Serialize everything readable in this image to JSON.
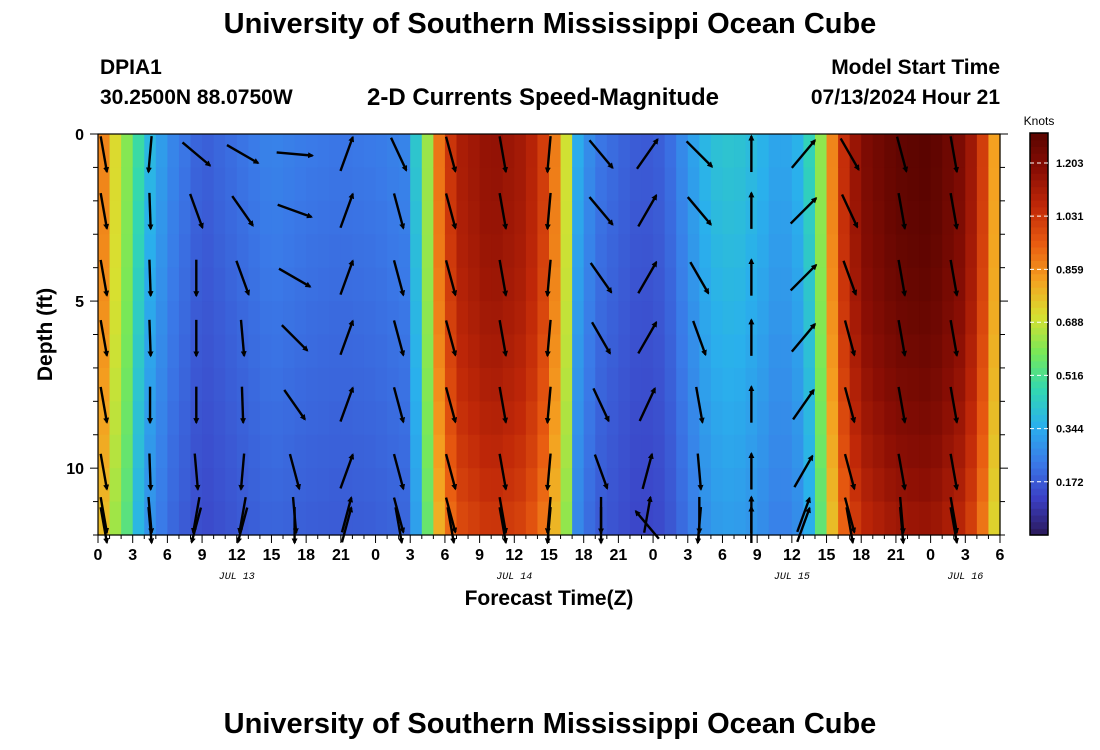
{
  "header": {
    "title": "University of Southern Mississippi Ocean Cube",
    "station": "DPIA1",
    "coords": "30.2500N  88.0750W",
    "subtitle": "2-D Currents Speed-Magnitude",
    "model_start_label": "Model Start Time",
    "model_start_value": "07/13/2024 Hour 21",
    "footer_title": "University of Southern Mississippi Ocean Cube"
  },
  "chart_data": {
    "type": "heatmap",
    "title": "2-D Currents Speed-Magnitude",
    "xlabel": "Forecast Time(Z)",
    "ylabel": "Depth (ft)",
    "ylim": [
      0,
      12
    ],
    "y_inverted": true,
    "y_ticks": [
      "0",
      "5",
      "10"
    ],
    "x_range_hours": [
      0,
      78
    ],
    "x_tick_labels": [
      "0",
      "3",
      "6",
      "9",
      "12",
      "15",
      "18",
      "21",
      "0",
      "3",
      "6",
      "9",
      "12",
      "15",
      "18",
      "21",
      "0",
      "3",
      "6",
      "9",
      "12",
      "15",
      "18",
      "21",
      "0",
      "3",
      "6"
    ],
    "date_labels": [
      {
        "hour": 12,
        "text": "JUL 13"
      },
      {
        "hour": 36,
        "text": "JUL 14"
      },
      {
        "hour": 60,
        "text": "JUL 15"
      },
      {
        "hour": 75,
        "text": "JUL 16"
      }
    ],
    "colorbar": {
      "label": "Knots",
      "min": 0.0,
      "max": 1.3,
      "ticks": [
        "0.172",
        "0.344",
        "0.516",
        "0.688",
        "0.859",
        "1.031",
        "1.203"
      ],
      "colors": [
        "#2a1858",
        "#3b3fc4",
        "#3a7ae8",
        "#2ab0ec",
        "#32d8b0",
        "#78e858",
        "#d8e030",
        "#f5a020",
        "#e85a10",
        "#c02808",
        "#8a0e04",
        "#5a0400"
      ]
    },
    "speed_profile_knots": [
      [
        0,
        0.95
      ],
      [
        1.5,
        0.72
      ],
      [
        3,
        0.55
      ],
      [
        4.5,
        0.38
      ],
      [
        6,
        0.28
      ],
      [
        9,
        0.18
      ],
      [
        12,
        0.22
      ],
      [
        15,
        0.26
      ],
      [
        18,
        0.24
      ],
      [
        21,
        0.23
      ],
      [
        24,
        0.24
      ],
      [
        26.5,
        0.26
      ],
      [
        28,
        0.5
      ],
      [
        29.5,
        0.9
      ],
      [
        31,
        1.1
      ],
      [
        34,
        1.17
      ],
      [
        37,
        1.12
      ],
      [
        39,
        0.98
      ],
      [
        40.5,
        0.7
      ],
      [
        41.5,
        0.35
      ],
      [
        43,
        0.24
      ],
      [
        45,
        0.2
      ],
      [
        47,
        0.17
      ],
      [
        49,
        0.19
      ],
      [
        51,
        0.3
      ],
      [
        53,
        0.4
      ],
      [
        55,
        0.42
      ],
      [
        57,
        0.38
      ],
      [
        59,
        0.32
      ],
      [
        61,
        0.38
      ],
      [
        62.5,
        0.62
      ],
      [
        64,
        1.0
      ],
      [
        66,
        1.2
      ],
      [
        69,
        1.28
      ],
      [
        72,
        1.3
      ],
      [
        75,
        1.2
      ],
      [
        77,
        0.95
      ],
      [
        78,
        0.7
      ]
    ],
    "vector_columns": [
      {
        "hour": 0.5,
        "dir": [
          170,
          170,
          170,
          170,
          170,
          170,
          170,
          170
        ]
      },
      {
        "hour": 4.5,
        "dir": [
          185,
          178,
          178,
          178,
          180,
          178,
          175,
          175
        ]
      },
      {
        "hour": 8.5,
        "dir": [
          130,
          160,
          180,
          180,
          180,
          175,
          190,
          195
        ]
      },
      {
        "hour": 12.5,
        "dir": [
          120,
          145,
          160,
          175,
          178,
          185,
          190,
          195
        ]
      },
      {
        "hour": 17,
        "dir": [
          95,
          110,
          120,
          135,
          145,
          165,
          175,
          180
        ]
      },
      {
        "hour": 21.5,
        "dir": [
          20,
          20,
          20,
          20,
          20,
          20,
          15,
          15
        ]
      },
      {
        "hour": 26,
        "dir": [
          155,
          165,
          165,
          165,
          165,
          165,
          165,
          170
        ]
      },
      {
        "hour": 30.5,
        "dir": [
          165,
          165,
          165,
          165,
          165,
          165,
          165,
          170
        ]
      },
      {
        "hour": 35,
        "dir": [
          170,
          170,
          170,
          170,
          170,
          170,
          170,
          170
        ]
      },
      {
        "hour": 39,
        "dir": [
          185,
          185,
          185,
          185,
          185,
          185,
          185,
          185
        ]
      },
      {
        "hour": 43.5,
        "dir": [
          140,
          140,
          145,
          150,
          155,
          160,
          180,
          180
        ]
      },
      {
        "hour": 47.5,
        "dir": [
          35,
          30,
          30,
          30,
          25,
          15,
          10,
          320
        ]
      },
      {
        "hour": 52,
        "dir": [
          135,
          140,
          150,
          160,
          170,
          175,
          180,
          185
        ]
      },
      {
        "hour": 56.5,
        "dir": [
          0,
          0,
          0,
          0,
          0,
          0,
          0,
          0
        ]
      },
      {
        "hour": 61,
        "dir": [
          40,
          45,
          45,
          40,
          35,
          30,
          20,
          20
        ]
      },
      {
        "hour": 65,
        "dir": [
          150,
          155,
          160,
          165,
          165,
          165,
          165,
          170
        ]
      },
      {
        "hour": 69.5,
        "dir": [
          165,
          170,
          170,
          170,
          170,
          170,
          175,
          175
        ]
      },
      {
        "hour": 74,
        "dir": [
          170,
          170,
          170,
          170,
          170,
          170,
          170,
          170
        ]
      }
    ]
  }
}
